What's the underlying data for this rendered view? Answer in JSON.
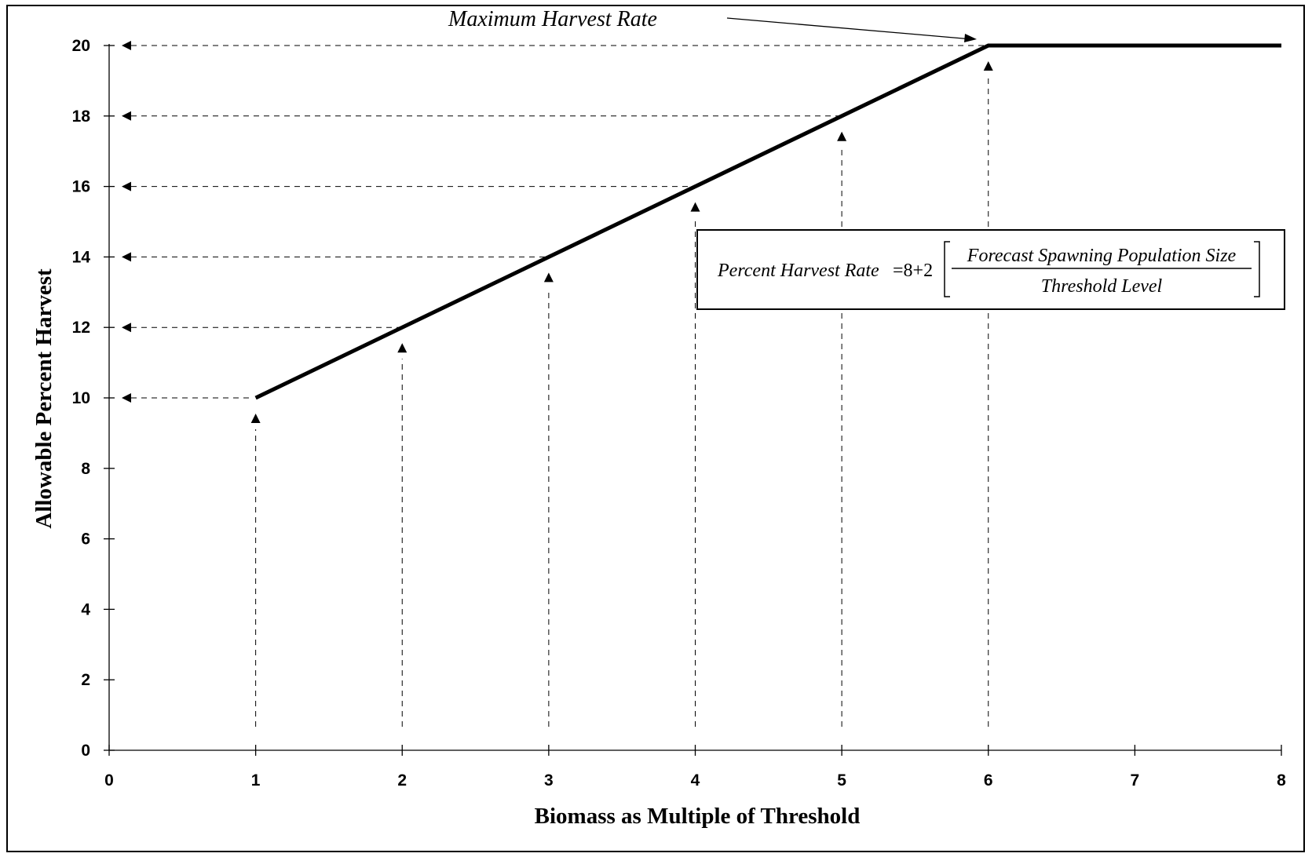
{
  "chart_data": {
    "type": "line",
    "xlabel": "Biomass as Multiple of Threshold",
    "ylabel": "Allowable Percent Harvest",
    "xlim": [
      0,
      8
    ],
    "ylim": [
      0,
      20
    ],
    "x_ticks": [
      "0",
      "1",
      "2",
      "3",
      "4",
      "5",
      "6",
      "7",
      "8"
    ],
    "y_ticks": [
      "0",
      "2",
      "4",
      "6",
      "8",
      "10",
      "12",
      "14",
      "16",
      "18",
      "20"
    ],
    "series": [
      {
        "x": [
          1,
          6,
          8
        ],
        "y": [
          10,
          20,
          20
        ]
      }
    ],
    "guides": [
      {
        "x": 1,
        "y": 10
      },
      {
        "x": 2,
        "y": 12
      },
      {
        "x": 3,
        "y": 14
      },
      {
        "x": 4,
        "y": 16
      },
      {
        "x": 5,
        "y": 18
      },
      {
        "x": 6,
        "y": 20
      }
    ],
    "annotations": {
      "max_rate": "Maximum Harvest Rate",
      "formula_lhs": "Percent Harvest Rate",
      "formula_const": "=8+2",
      "formula_numerator": "Forecast Spawning Population Size",
      "formula_denominator": "Threshold Level"
    },
    "grid": false,
    "legend": "none"
  }
}
